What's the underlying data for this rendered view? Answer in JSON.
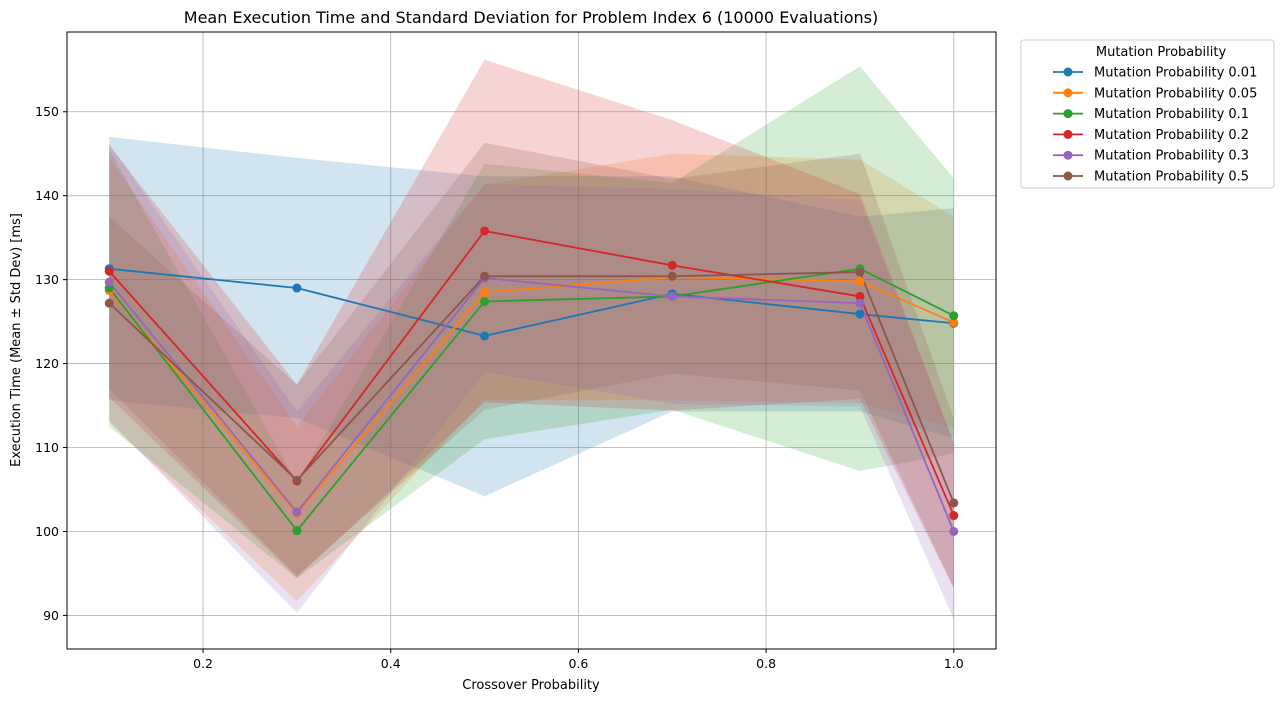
{
  "chart_data": {
    "type": "line",
    "title": "Mean Execution Time and Standard Deviation for Problem Index 6 (10000 Evaluations)",
    "xlabel": "Crossover Probability",
    "ylabel": "Execution Time (Mean ± Std Dev) [ms]",
    "xlim": [
      0.055,
      1.045
    ],
    "ylim": [
      86,
      159.5
    ],
    "xticks": [
      0.2,
      0.4,
      0.6,
      0.8,
      1.0
    ],
    "xtick_labels": [
      "0.2",
      "0.4",
      "0.6",
      "0.8",
      "1.0"
    ],
    "yticks": [
      90,
      100,
      110,
      120,
      130,
      140,
      150
    ],
    "ytick_labels": [
      "90",
      "100",
      "110",
      "120",
      "130",
      "140",
      "150"
    ],
    "grid": true,
    "legend": {
      "title": "Mutation Probability",
      "placement": "outside-top-right"
    },
    "x": [
      0.1,
      0.3,
      0.5,
      0.7,
      0.9,
      1.0
    ],
    "series": [
      {
        "name": "Mutation Probability 0.01",
        "color": "#1f77b4",
        "mean": [
          131.3,
          129.0,
          123.3,
          128.3,
          125.9,
          124.8
        ],
        "upper": [
          147.0,
          144.5,
          142.3,
          142.3,
          137.5,
          138.5
        ],
        "lower": [
          115.6,
          113.5,
          104.2,
          114.3,
          114.3,
          111.1
        ]
      },
      {
        "name": "Mutation Probability 0.05",
        "color": "#ff7f0e",
        "mean": [
          128.7,
          102.1,
          128.5,
          130.3,
          129.8,
          124.9
        ],
        "upper": [
          144.5,
          112.5,
          141.3,
          145.0,
          144.3,
          137.5
        ],
        "lower": [
          113.0,
          91.7,
          115.7,
          115.6,
          115.3,
          112.3
        ]
      },
      {
        "name": "Mutation Probability 0.1",
        "color": "#2ca02c",
        "mean": [
          129.0,
          100.1,
          127.4,
          128.0,
          131.3,
          125.7
        ],
        "upper": [
          145.5,
          105.8,
          143.8,
          141.5,
          155.4,
          142.1
        ],
        "lower": [
          112.5,
          94.4,
          111.0,
          114.5,
          107.2,
          109.3
        ]
      },
      {
        "name": "Mutation Probability 0.2",
        "color": "#d62728",
        "mean": [
          131.0,
          106.0,
          135.8,
          131.7,
          128.0,
          101.9
        ],
        "upper": [
          146.0,
          117.5,
          156.2,
          149.0,
          140.2,
          110.6
        ],
        "lower": [
          116.0,
          94.5,
          115.4,
          114.4,
          115.8,
          93.2
        ]
      },
      {
        "name": "Mutation Probability 0.3",
        "color": "#9467bd",
        "mean": [
          129.7,
          102.3,
          130.2,
          128.0,
          127.2,
          100.0
        ],
        "upper": [
          146.2,
          114.3,
          141.4,
          140.8,
          139.5,
          110.5
        ],
        "lower": [
          113.2,
          90.3,
          119.0,
          115.2,
          114.9,
          89.5
        ]
      },
      {
        "name": "Mutation Probability 0.5",
        "color": "#8c564b",
        "mean": [
          127.2,
          106.1,
          130.4,
          130.4,
          130.9,
          103.4
        ],
        "upper": [
          137.5,
          117.5,
          146.3,
          142.0,
          145.0,
          113.5
        ],
        "lower": [
          117.0,
          94.7,
          114.5,
          118.8,
          116.8,
          93.3
        ]
      }
    ]
  }
}
